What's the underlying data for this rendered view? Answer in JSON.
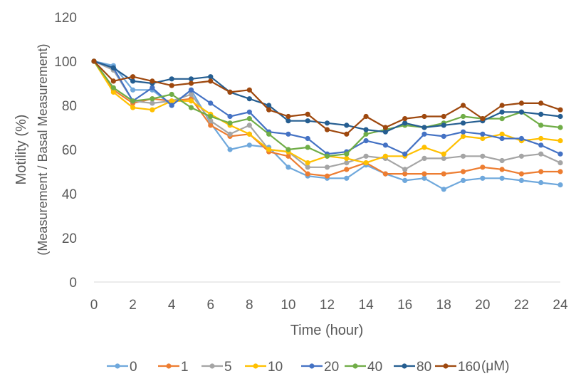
{
  "chart_data": {
    "type": "line",
    "xlabel": "Time (hour)",
    "ylabel": "Motility (%)",
    "ylabel2": "(Measurement / Basal Measurement)",
    "xlim": [
      0,
      24
    ],
    "ylim": [
      0,
      120
    ],
    "xticks": [
      "0",
      "2",
      "4",
      "6",
      "8",
      "10",
      "12",
      "14",
      "16",
      "18",
      "20",
      "22",
      "24"
    ],
    "yticks": [
      "0",
      "20",
      "40",
      "60",
      "80",
      "100",
      "120"
    ],
    "grid": false,
    "legend_position": "bottom",
    "legend_unit": "(μM)",
    "x": [
      0,
      1,
      2,
      3,
      4,
      5,
      6,
      7,
      8,
      9,
      10,
      11,
      12,
      13,
      14,
      15,
      16,
      17,
      18,
      19,
      20,
      21,
      22,
      23,
      24
    ],
    "series": [
      {
        "name": "0",
        "color": "#6fa8dc",
        "values": [
          100,
          98,
          87,
          87,
          80,
          87,
          72,
          60,
          62,
          61,
          52,
          48,
          47,
          47,
          53,
          49,
          46,
          47,
          42,
          46,
          47,
          47,
          46,
          45,
          44
        ]
      },
      {
        "name": "1",
        "color": "#ed7d31",
        "values": [
          100,
          87,
          81,
          83,
          82,
          83,
          71,
          66,
          67,
          59,
          57,
          49,
          48,
          51,
          54,
          49,
          49,
          49,
          49,
          50,
          52,
          51,
          49,
          50,
          50
        ]
      },
      {
        "name": "5",
        "color": "#a5a5a5",
        "values": [
          100,
          96,
          82,
          81,
          82,
          85,
          73,
          67,
          71,
          60,
          59,
          52,
          52,
          54,
          57,
          56,
          51,
          56,
          56,
          57,
          57,
          55,
          57,
          58,
          54
        ]
      },
      {
        "name": "10",
        "color": "#ffc000",
        "values": [
          100,
          86,
          79,
          78,
          82,
          82,
          76,
          71,
          67,
          60,
          59,
          54,
          57,
          56,
          54,
          57,
          57,
          61,
          58,
          66,
          65,
          67,
          64,
          65,
          64
        ]
      },
      {
        "name": "20",
        "color": "#4472c4",
        "values": [
          100,
          97,
          82,
          88,
          80,
          87,
          81,
          75,
          77,
          68,
          67,
          65,
          58,
          59,
          64,
          62,
          58,
          67,
          66,
          68,
          67,
          65,
          65,
          62,
          58
        ]
      },
      {
        "name": "40",
        "color": "#70ad47",
        "values": [
          100,
          88,
          82,
          83,
          85,
          79,
          75,
          72,
          74,
          67,
          60,
          61,
          57,
          58,
          67,
          69,
          71,
          70,
          72,
          75,
          74,
          74,
          77,
          71,
          70
        ]
      },
      {
        "name": "80",
        "color": "#255e91",
        "values": [
          100,
          97,
          91,
          90,
          92,
          92,
          93,
          86,
          83,
          80,
          73,
          73,
          72,
          71,
          69,
          68,
          72,
          70,
          71,
          72,
          73,
          77,
          77,
          76,
          75
        ]
      },
      {
        "name": "160",
        "color": "#9e480e",
        "values": [
          100,
          91,
          93,
          91,
          89,
          90,
          91,
          86,
          87,
          78,
          75,
          76,
          69,
          67,
          75,
          70,
          74,
          75,
          75,
          80,
          74,
          80,
          81,
          81,
          78
        ]
      }
    ]
  }
}
